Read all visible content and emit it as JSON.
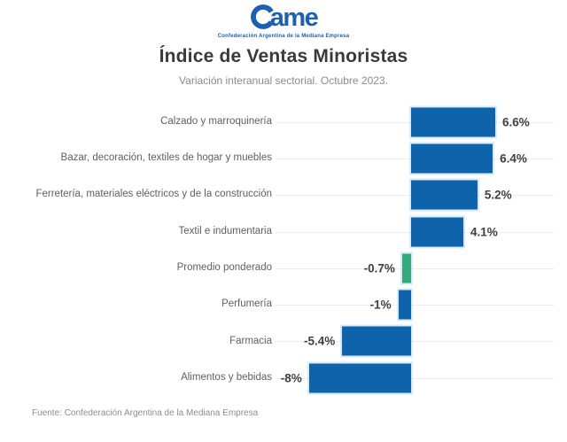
{
  "logo": {
    "wordmark": "Came",
    "wordmark_suffix": "ame",
    "subtitle": "Confederación Argentina de la Mediana Empresa",
    "color": "#1d5fb0"
  },
  "header": {
    "title": "Índice de Ventas Minoristas",
    "subtitle": "Variación interanual sectorial. Octubre 2023."
  },
  "chart_data": {
    "type": "bar",
    "orientation": "horizontal",
    "title": "Índice de Ventas Minoristas",
    "subtitle": "Variación interanual sectorial. Octubre 2023.",
    "unit": "%",
    "categories": [
      "Calzado y marroquinería",
      "Bazar, decoración, textiles de hogar y muebles",
      "Ferretería, materiales eléctricos y de la construcción",
      "Textil e indumentaria",
      "Promedio ponderado",
      "Perfumería",
      "Farmacia",
      "Alimentos y bebidas"
    ],
    "values": [
      6.6,
      6.4,
      5.2,
      4.1,
      -0.7,
      -1,
      -5.4,
      -8
    ],
    "value_labels": [
      "6.6%",
      "6.4%",
      "5.2%",
      "4.1%",
      "-0.7%",
      "-1%",
      "-5.4%",
      "-8%"
    ],
    "bar_colors": [
      "#0e63ab",
      "#0e63ab",
      "#0e63ab",
      "#0e63ab",
      "#36a97d",
      "#0e63ab",
      "#0e63ab",
      "#0e63ab"
    ],
    "highlight_category": "Promedio ponderado",
    "xlim": [
      -9,
      8
    ],
    "axis_labels_visible": false,
    "grid": "faint horizontal line per category row",
    "legend": false
  },
  "footer": {
    "source": "Fuente: Confederación Argentina de la Mediana Empresa"
  },
  "colors": {
    "bar_blue": "#0e63ab",
    "bar_green": "#36a97d",
    "logo_blue": "#1d5fb0",
    "title_text": "#3a3a3a",
    "category_text": "#5f5f5f",
    "muted_text": "#8e8e8e",
    "gridline": "#ededed"
  }
}
